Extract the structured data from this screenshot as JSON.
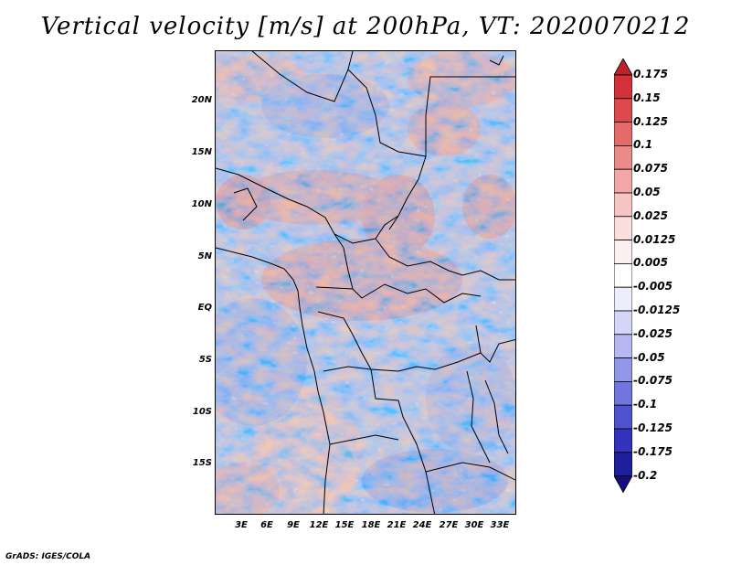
{
  "title": "Vertical velocity [m/s] at 200hPa, VT: 2020070212",
  "footer": "GrADS: IGES/COLA",
  "map": {
    "variable": "Vertical velocity",
    "units": "m/s",
    "level": "200hPa",
    "valid_time": "2020070212",
    "lat_labels": [
      "20N",
      "15N",
      "10N",
      "5N",
      "EQ",
      "5S",
      "10S",
      "15S"
    ],
    "lon_labels": [
      "3E",
      "6E",
      "9E",
      "12E",
      "15E",
      "18E",
      "21E",
      "24E",
      "27E",
      "30E",
      "33E"
    ]
  },
  "colorbar": {
    "labels": [
      "0.175",
      "0.15",
      "0.125",
      "0.1",
      "0.075",
      "0.05",
      "0.025",
      "0.0125",
      "0.005",
      "-0.005",
      "-0.0125",
      "-0.025",
      "-0.05",
      "-0.075",
      "-0.1",
      "-0.125",
      "-0.175",
      "-0.2"
    ],
    "colors": [
      "#c0222a",
      "#d2313a",
      "#dd4a4e",
      "#e56a6a",
      "#ec8a8a",
      "#f2a6a6",
      "#f7c4c4",
      "#fbdede",
      "#fdf0f0",
      "#ffffff",
      "#eceefd",
      "#d4d6f7",
      "#b6b8f1",
      "#9497e8",
      "#7175dd",
      "#4f52cf",
      "#3234bb",
      "#1f1f9e",
      "#150c80"
    ]
  }
}
